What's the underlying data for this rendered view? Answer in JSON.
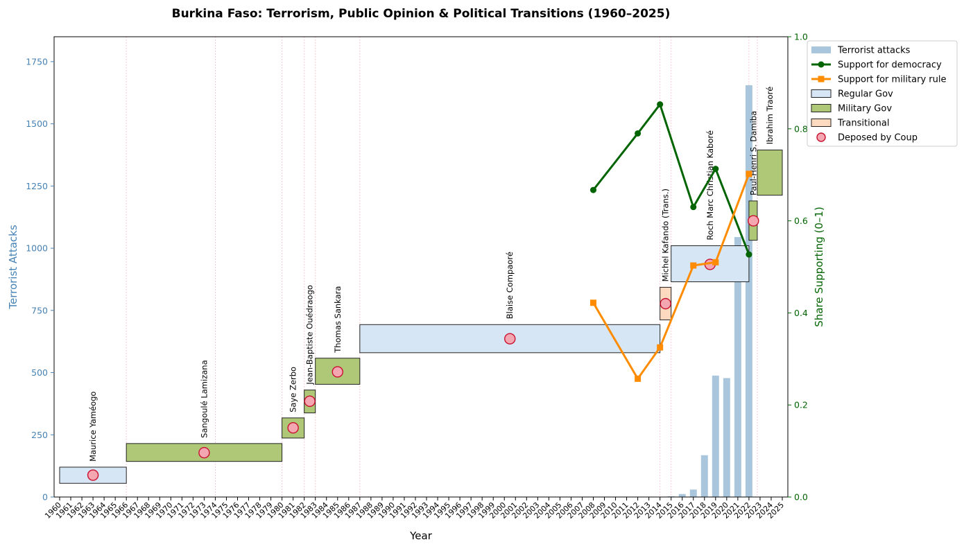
{
  "chart_data": {
    "type": "bar+line+timeline",
    "title": "Burkina Faso: Terrorism, Public Opinion & Political Transitions (1960–2025)",
    "xlabel": "Year",
    "ylabel_left": "Terrorist Attacks",
    "ylabel_right": "Share Supporting (0–1)",
    "xlim": [
      1960,
      2025
    ],
    "ylim_left": [
      0,
      1850
    ],
    "ylim_right": [
      0,
      1
    ],
    "left_ticks": [
      0,
      250,
      500,
      750,
      1000,
      1250,
      1500,
      1750
    ],
    "left_tick_labels": [
      "0",
      "250",
      "500",
      "750",
      "1000",
      "1250",
      "1500",
      "1750"
    ],
    "right_ticks": [
      0,
      0.2,
      0.4,
      0.6,
      0.8,
      1.0
    ],
    "right_tick_labels": [
      "0.0",
      "0.2",
      "0.4",
      "0.6",
      "0.8",
      "1.0"
    ],
    "years": [
      "1960",
      "1961",
      "1962",
      "1963",
      "1964",
      "1965",
      "1966",
      "1967",
      "1968",
      "1969",
      "1970",
      "1971",
      "1972",
      "1973",
      "1974",
      "1975",
      "1976",
      "1977",
      "1978",
      "1979",
      "1980",
      "1981",
      "1982",
      "1983",
      "1984",
      "1985",
      "1986",
      "1987",
      "1988",
      "1989",
      "1990",
      "1991",
      "1992",
      "1993",
      "1994",
      "1995",
      "1996",
      "1997",
      "1998",
      "1999",
      "2000",
      "2001",
      "2002",
      "2003",
      "2004",
      "2005",
      "2006",
      "2007",
      "2008",
      "2009",
      "2010",
      "2011",
      "2012",
      "2013",
      "2014",
      "2015",
      "2016",
      "2017",
      "2018",
      "2019",
      "2020",
      "2021",
      "2022",
      "2023",
      "2024",
      "2025"
    ],
    "attacks": {
      "name": "Terrorist attacks",
      "color": "#a9c6dc",
      "years": [
        2015,
        2016,
        2017,
        2018,
        2019,
        2020,
        2021,
        2022
      ],
      "values": [
        3,
        12,
        30,
        168,
        488,
        478,
        1045,
        1655
      ]
    },
    "series": [
      {
        "name": "Support for democracy",
        "color": "#006400",
        "marker": "circle",
        "years": [
          2008,
          2012,
          2014,
          2017,
          2019,
          2022
        ],
        "values": [
          0.667,
          0.79,
          0.853,
          0.63,
          0.713,
          0.527
        ]
      },
      {
        "name": "Support for military rule",
        "color": "#ff8c00",
        "marker": "square",
        "years": [
          2008,
          2012,
          2014,
          2017,
          2019,
          2022
        ],
        "values": [
          0.422,
          0.257,
          0.325,
          0.503,
          0.51,
          0.702
        ]
      }
    ],
    "transition_lines": [
      1966,
      1974,
      1980,
      1982,
      1983,
      1987,
      2014,
      2015,
      2022,
      2022.75
    ],
    "leaders": [
      {
        "name": "Maurice Yaméogo",
        "start": 1960,
        "end": 1966,
        "type": "regular",
        "low": 55,
        "high": 120,
        "deposed_year": 1963,
        "deposed_value": 88
      },
      {
        "name": "Sangoulé Lamizana",
        "start": 1966,
        "end": 1980,
        "type": "military",
        "low": 143,
        "high": 215,
        "deposed_year": 1973,
        "deposed_value": 178
      },
      {
        "name": "Saye Zerbo",
        "start": 1980,
        "end": 1982,
        "type": "military",
        "low": 237,
        "high": 318,
        "deposed_year": 1981,
        "deposed_value": 278
      },
      {
        "name": "Jean-Baptiste Ouédraogo",
        "start": 1982,
        "end": 1983,
        "type": "military",
        "low": 338,
        "high": 430,
        "deposed_year": 1982.5,
        "deposed_value": 385
      },
      {
        "name": "Thomas Sankara",
        "start": 1983,
        "end": 1987,
        "type": "military",
        "low": 453,
        "high": 558,
        "deposed_year": 1985,
        "deposed_value": 503
      },
      {
        "name": "Blaise Compaoré",
        "start": 1987,
        "end": 2014,
        "type": "regular",
        "low": 580,
        "high": 693,
        "deposed_year": 2000.5,
        "deposed_value": 636
      },
      {
        "name": "Michel Kafando (Trans.)",
        "start": 2014,
        "end": 2015,
        "type": "transitional",
        "low": 712,
        "high": 843,
        "deposed_year": 2014.5,
        "deposed_value": 777
      },
      {
        "name": "Roch Marc Christian Kaboré",
        "start": 2015,
        "end": 2022,
        "type": "regular",
        "low": 865,
        "high": 1010,
        "deposed_year": 2018.5,
        "deposed_value": 935
      },
      {
        "name": "Paul-Henri S. Damiba",
        "start": 2022,
        "end": 2022.75,
        "type": "military",
        "low": 1032,
        "high": 1190,
        "deposed_year": 2022.4,
        "deposed_value": 1110
      },
      {
        "name": "Ibrahim Traoré",
        "start": 2022.75,
        "end": 2025,
        "type": "military",
        "low": 1213,
        "high": 1395,
        "deposed_year": null,
        "deposed_value": null
      }
    ],
    "gov_colors": {
      "regular": "#d6e6f5",
      "military": "#afc877",
      "transitional": "#fdd9c0"
    },
    "legend": [
      {
        "label": "Terrorist attacks",
        "kind": "bar",
        "color": "#a9c6dc"
      },
      {
        "label": "Support for democracy",
        "kind": "line-circle",
        "color": "#006400"
      },
      {
        "label": "Support for military rule",
        "kind": "line-square",
        "color": "#ff8c00"
      },
      {
        "label": "Regular Gov",
        "kind": "patch",
        "color": "#d6e6f5"
      },
      {
        "label": "Military Gov",
        "kind": "patch",
        "color": "#afc877"
      },
      {
        "label": "Transitional",
        "kind": "patch",
        "color": "#fdd9c0"
      },
      {
        "label": "Deposed by Coup",
        "kind": "marker",
        "color": "#f4a7b0"
      }
    ],
    "legend_position": "upper right, outside plot"
  }
}
